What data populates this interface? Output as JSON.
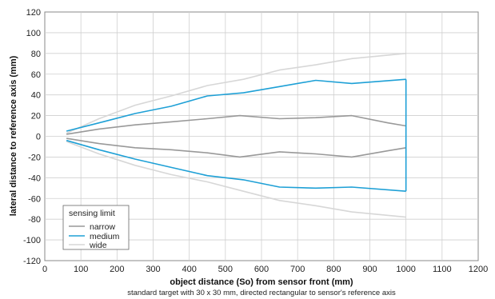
{
  "chart_data": {
    "type": "line",
    "title": "",
    "xlabel": "object distance (So) from sensor front (mm)",
    "ylabel": "lateral distance to reference axis (mm)",
    "caption": "standard target with 30 x 30 mm, directed rectangular to sensor's reference axis",
    "xlim": [
      0,
      1200
    ],
    "ylim": [
      -120,
      120
    ],
    "xticks": [
      0,
      100,
      200,
      300,
      400,
      500,
      600,
      700,
      800,
      900,
      1000,
      1100,
      1200
    ],
    "yticks": [
      -120,
      -100,
      -80,
      -60,
      -40,
      -20,
      0,
      20,
      40,
      60,
      80,
      100,
      120
    ],
    "grid": true,
    "legend": {
      "title": "sensing limit",
      "position": "bottom-left"
    },
    "series": [
      {
        "name": "narrow",
        "color": "#999999",
        "upper": [
          [
            60,
            2
          ],
          [
            150,
            7
          ],
          [
            250,
            11
          ],
          [
            350,
            14
          ],
          [
            450,
            17
          ],
          [
            540,
            20
          ],
          [
            650,
            17
          ],
          [
            750,
            18
          ],
          [
            850,
            20
          ],
          [
            950,
            13
          ],
          [
            1000,
            10
          ]
        ],
        "lower": [
          [
            60,
            -2
          ],
          [
            150,
            -7
          ],
          [
            250,
            -11
          ],
          [
            350,
            -13
          ],
          [
            450,
            -16
          ],
          [
            540,
            -20
          ],
          [
            650,
            -15
          ],
          [
            750,
            -17
          ],
          [
            850,
            -20
          ],
          [
            950,
            -14
          ],
          [
            1000,
            -11
          ]
        ]
      },
      {
        "name": "medium",
        "color": "#1ea0d6",
        "upper": [
          [
            60,
            5
          ],
          [
            150,
            13
          ],
          [
            250,
            22
          ],
          [
            350,
            29
          ],
          [
            450,
            39
          ],
          [
            550,
            42
          ],
          [
            650,
            48
          ],
          [
            750,
            54
          ],
          [
            850,
            51
          ],
          [
            1000,
            55
          ]
        ],
        "lower": [
          [
            60,
            -4
          ],
          [
            150,
            -13
          ],
          [
            250,
            -22
          ],
          [
            350,
            -30
          ],
          [
            450,
            -38
          ],
          [
            550,
            -42
          ],
          [
            650,
            -49
          ],
          [
            750,
            -50
          ],
          [
            850,
            -49
          ],
          [
            1000,
            -53
          ]
        ],
        "closed_at": 1000
      },
      {
        "name": "wide",
        "color": "#d7d7d7",
        "upper": [
          [
            60,
            3
          ],
          [
            150,
            17
          ],
          [
            250,
            30
          ],
          [
            350,
            39
          ],
          [
            450,
            49
          ],
          [
            550,
            55
          ],
          [
            650,
            64
          ],
          [
            750,
            69
          ],
          [
            850,
            75
          ],
          [
            1000,
            80
          ]
        ],
        "lower": [
          [
            60,
            -5
          ],
          [
            150,
            -17
          ],
          [
            250,
            -28
          ],
          [
            350,
            -37
          ],
          [
            450,
            -44
          ],
          [
            550,
            -53
          ],
          [
            650,
            -62
          ],
          [
            750,
            -67
          ],
          [
            850,
            -73
          ],
          [
            1000,
            -78
          ]
        ]
      }
    ]
  }
}
